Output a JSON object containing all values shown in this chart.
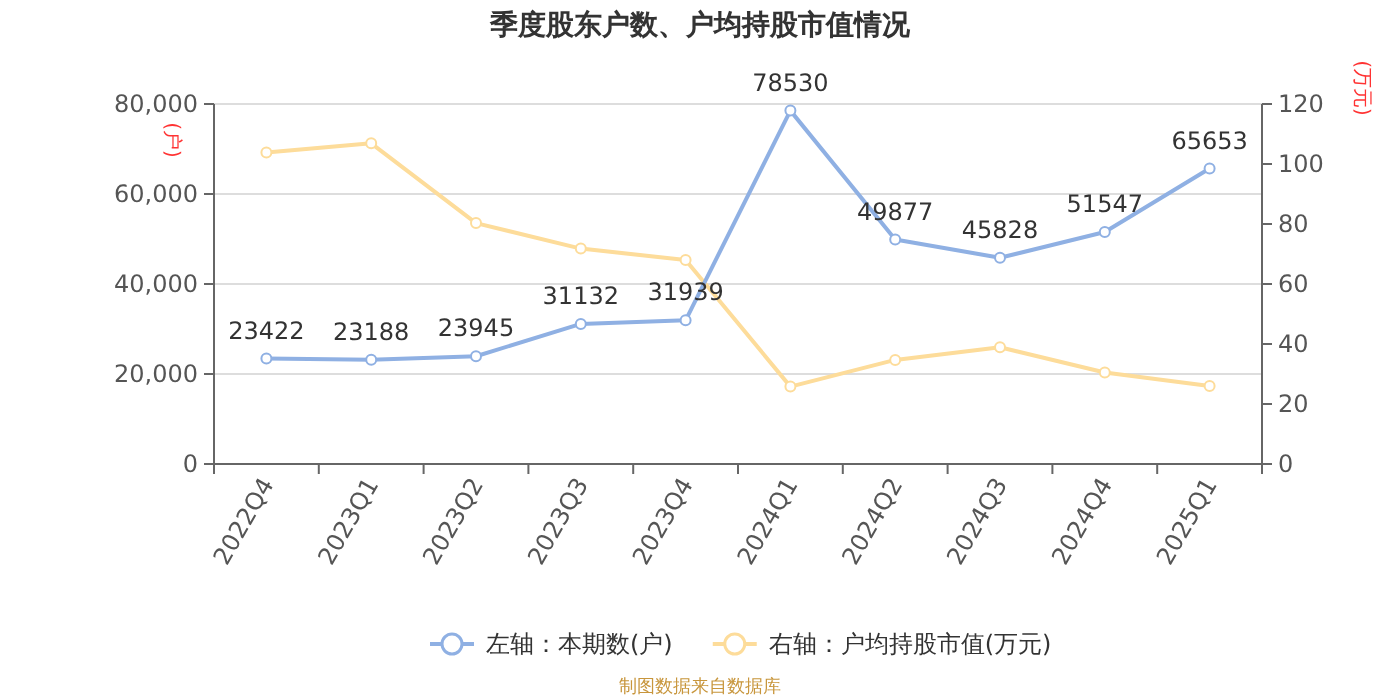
{
  "chart_data": {
    "type": "line",
    "title": "季度股东户数、户均持股市值情况",
    "ylabel": "(户)",
    "y2label": "(万元)",
    "categories": [
      "2022Q4",
      "2023Q1",
      "2023Q2",
      "2023Q3",
      "2023Q4",
      "2024Q1",
      "2024Q2",
      "2024Q3",
      "2024Q4",
      "2025Q1"
    ],
    "series": [
      {
        "name": "左轴：本期数(户)",
        "color": "#8fb0e3",
        "data_labels": true,
        "values": [
          23422,
          23188,
          23945,
          31132,
          31939,
          78530,
          49877,
          45828,
          51547,
          65653
        ]
      },
      {
        "name": "右轴：户均持股市值(万元)",
        "color": "#fddc9a",
        "axis": "y2",
        "values": [
          103.8,
          106.9,
          80.3,
          71.8,
          68,
          25.8,
          34.7,
          38.9,
          30.5,
          26
        ]
      }
    ],
    "ylim": [
      0,
      80000
    ],
    "yticks": [
      {
        "value": 0,
        "label": "0"
      },
      {
        "value": 20000,
        "label": "20,000"
      },
      {
        "value": 40000,
        "label": "40,000"
      },
      {
        "value": 60000,
        "label": "60,000"
      },
      {
        "value": 80000,
        "label": "80,000"
      }
    ],
    "y2lim": [
      0,
      120
    ],
    "y2ticks": [
      0,
      20,
      40,
      60,
      80,
      100,
      120
    ],
    "grid": "y",
    "legend": "bottom",
    "marker": "circle",
    "line_style": "solid",
    "annotations": [
      "制图数据来自数据库"
    ]
  }
}
